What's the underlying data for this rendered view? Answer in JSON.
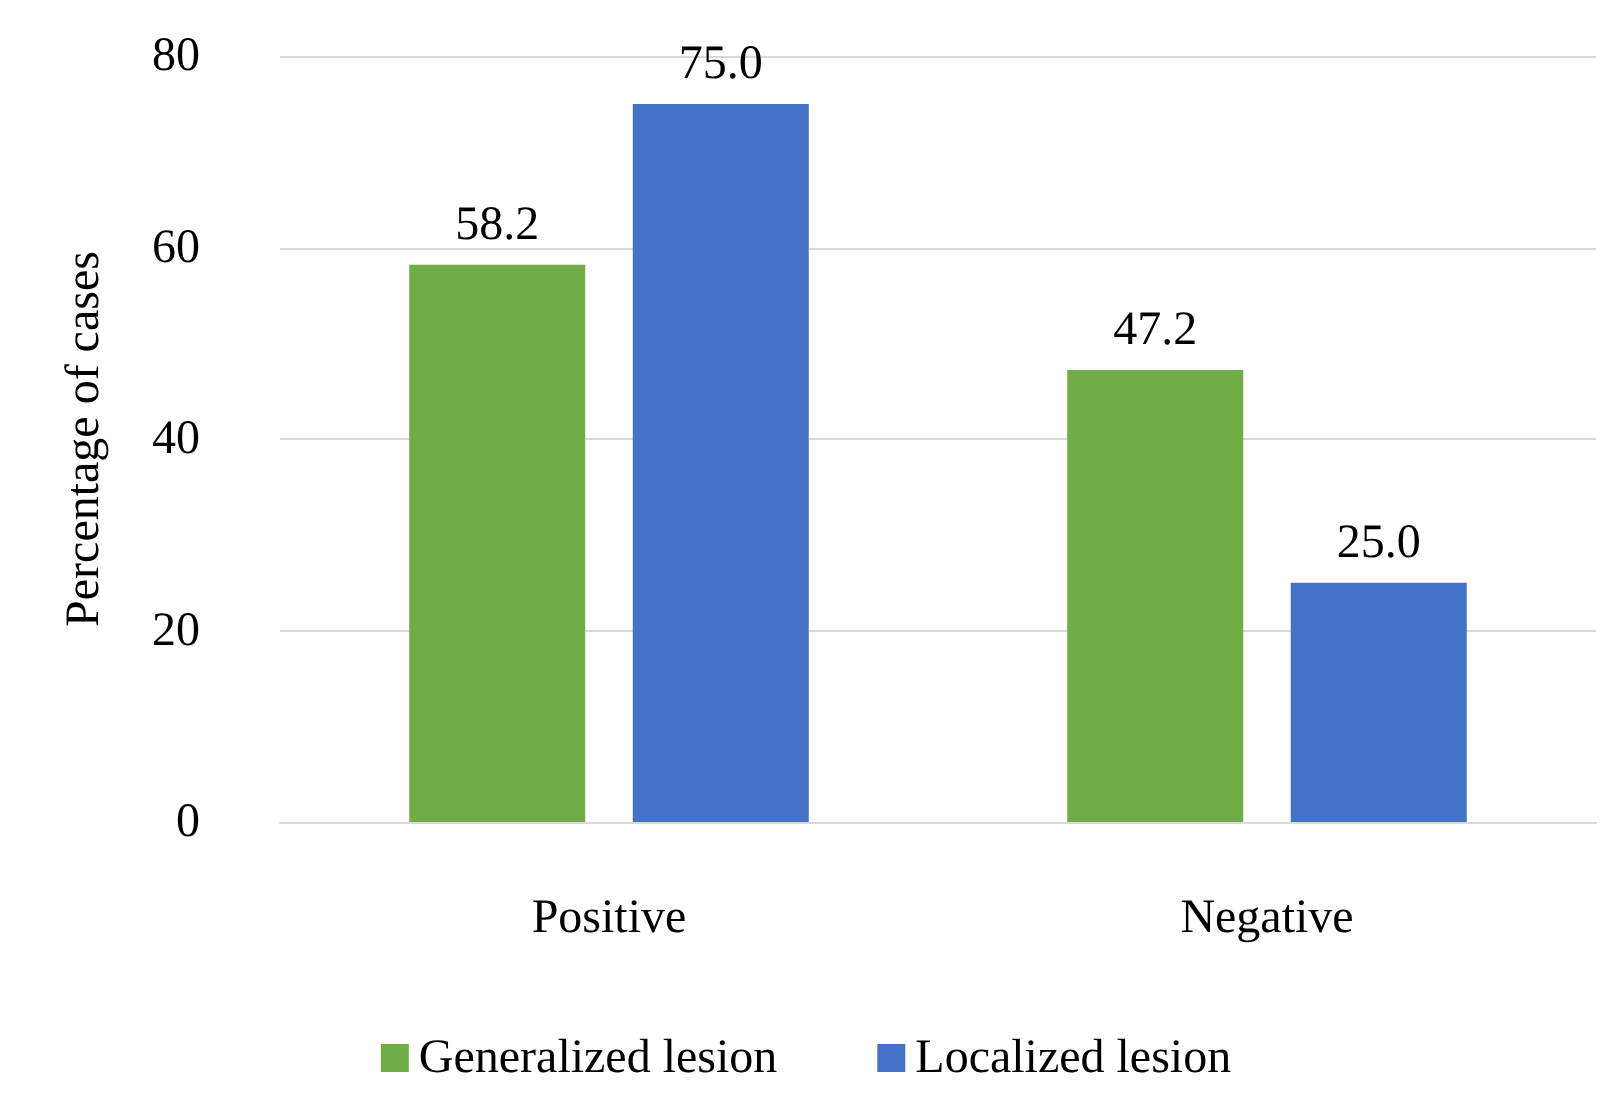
{
  "chart_data": {
    "type": "bar",
    "ylabel": "Percentage of cases",
    "categories": [
      "Positive",
      "Negative"
    ],
    "series": [
      {
        "name": "Generalized lesion",
        "color": "#70ad47",
        "values": [
          58.2,
          47.2
        ],
        "value_labels": [
          "58.2",
          "47.2"
        ]
      },
      {
        "name": "Localized lesion",
        "color": "#4472c4",
        "values": [
          75.0,
          25.0
        ],
        "value_labels": [
          "75.0",
          "25.0"
        ]
      }
    ],
    "ylim": [
      0,
      80
    ],
    "yticks": [
      0,
      20,
      40,
      60,
      80
    ],
    "grid": "y",
    "legend": "bottom"
  }
}
